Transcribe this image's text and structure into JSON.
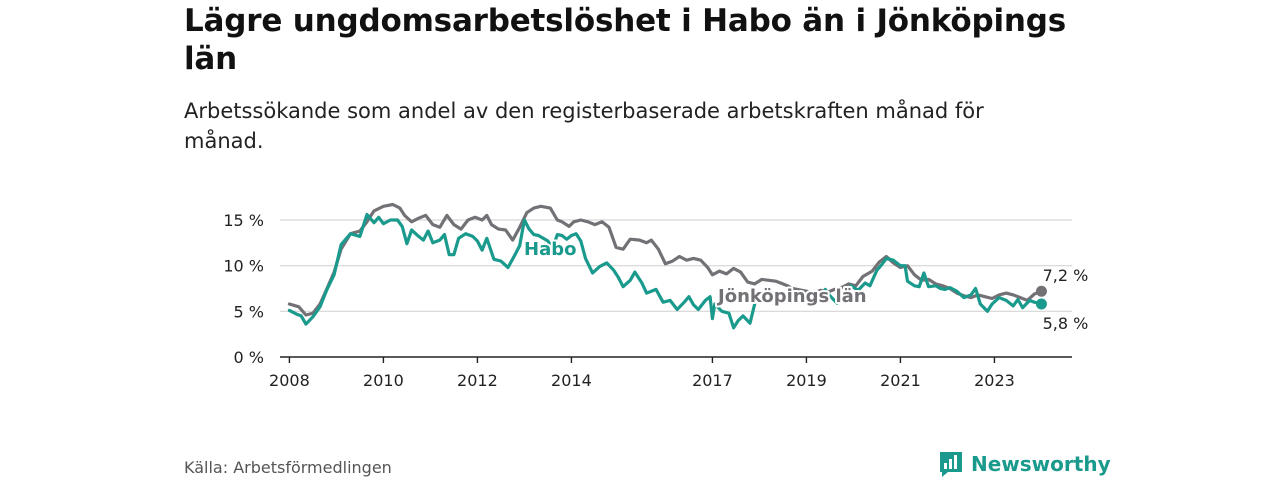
{
  "title": "Lägre ungdomsarbetslöshet i Habo än i Jönköpings län",
  "subtitle": "Arbetssökande som andel av den registerbaserade arbetskraften månad för månad.",
  "source": "Källa: Arbetsförmedlingen",
  "brand": "Newsworthy",
  "colors": {
    "habo": "#1a9a8c",
    "lan": "#747176",
    "axis": "#222222",
    "grid": "#d6d6d6"
  },
  "chart_data": {
    "type": "line",
    "title": "Lägre ungdomsarbetslöshet i Habo än i Jönköpings län",
    "xlabel": "",
    "ylabel": "",
    "xlim": [
      2007.8,
      2024.65
    ],
    "ylim": [
      0,
      15
    ],
    "y_ticks": [
      0,
      5,
      10,
      15
    ],
    "y_tick_labels": [
      "0 %",
      "5 %",
      "10 %",
      "15 %"
    ],
    "x_ticks": [
      2008,
      2010,
      2012,
      2014,
      2017,
      2019,
      2021,
      2023
    ],
    "x_tick_labels": [
      "2008",
      "2010",
      "2012",
      "2014",
      "2017",
      "2019",
      "2021",
      "2023"
    ],
    "grid": true,
    "series": [
      {
        "name": "Jönköpings län",
        "color": "#747176",
        "end_label": "7,2 %",
        "points": [
          [
            2008.0,
            5.8
          ],
          [
            2008.2,
            5.5
          ],
          [
            2008.35,
            4.6
          ],
          [
            2008.5,
            4.8
          ],
          [
            2008.65,
            5.8
          ],
          [
            2008.8,
            7.5
          ],
          [
            2008.95,
            9.3
          ],
          [
            2009.1,
            11.8
          ],
          [
            2009.3,
            13.5
          ],
          [
            2009.5,
            13.8
          ],
          [
            2009.65,
            14.8
          ],
          [
            2009.8,
            16.0
          ],
          [
            2010.0,
            16.5
          ],
          [
            2010.2,
            16.7
          ],
          [
            2010.35,
            16.3
          ],
          [
            2010.45,
            15.5
          ],
          [
            2010.6,
            14.8
          ],
          [
            2010.75,
            15.2
          ],
          [
            2010.9,
            15.5
          ],
          [
            2011.05,
            14.5
          ],
          [
            2011.2,
            14.2
          ],
          [
            2011.35,
            15.5
          ],
          [
            2011.5,
            14.5
          ],
          [
            2011.65,
            14.0
          ],
          [
            2011.8,
            15.0
          ],
          [
            2011.95,
            15.3
          ],
          [
            2012.1,
            15.0
          ],
          [
            2012.2,
            15.5
          ],
          [
            2012.3,
            14.5
          ],
          [
            2012.45,
            14.0
          ],
          [
            2012.6,
            13.9
          ],
          [
            2012.75,
            12.8
          ],
          [
            2012.9,
            14.2
          ],
          [
            2013.05,
            15.8
          ],
          [
            2013.2,
            16.3
          ],
          [
            2013.35,
            16.5
          ],
          [
            2013.55,
            16.3
          ],
          [
            2013.7,
            15.0
          ],
          [
            2013.8,
            14.8
          ],
          [
            2013.95,
            14.3
          ],
          [
            2014.05,
            14.8
          ],
          [
            2014.2,
            15.0
          ],
          [
            2014.35,
            14.8
          ],
          [
            2014.5,
            14.5
          ],
          [
            2014.65,
            14.8
          ],
          [
            2014.8,
            14.2
          ],
          [
            2014.95,
            12.0
          ],
          [
            2015.1,
            11.8
          ],
          [
            2015.25,
            12.9
          ],
          [
            2015.45,
            12.8
          ],
          [
            2015.6,
            12.5
          ],
          [
            2015.7,
            12.8
          ],
          [
            2015.85,
            11.8
          ],
          [
            2016.0,
            10.2
          ],
          [
            2016.15,
            10.5
          ],
          [
            2016.3,
            11.0
          ],
          [
            2016.45,
            10.6
          ],
          [
            2016.6,
            10.8
          ],
          [
            2016.75,
            10.6
          ],
          [
            2016.9,
            9.8
          ],
          [
            2017.0,
            9.0
          ],
          [
            2017.15,
            9.4
          ],
          [
            2017.3,
            9.1
          ],
          [
            2017.45,
            9.7
          ],
          [
            2017.6,
            9.3
          ],
          [
            2017.75,
            8.2
          ],
          [
            2017.9,
            8.0
          ],
          [
            2018.05,
            8.5
          ],
          [
            2018.2,
            8.4
          ],
          [
            2018.35,
            8.3
          ],
          [
            2018.5,
            8.0
          ],
          [
            2018.6,
            7.8
          ],
          [
            2018.7,
            7.5
          ],
          [
            2019.0,
            7.2
          ],
          [
            2019.15,
            7.0
          ],
          [
            2019.3,
            7.3
          ],
          [
            2019.45,
            7.1
          ],
          [
            2019.6,
            7.4
          ],
          [
            2019.75,
            7.6
          ],
          [
            2019.9,
            8.0
          ],
          [
            2020.05,
            7.8
          ],
          [
            2020.2,
            8.8
          ],
          [
            2020.4,
            9.4
          ],
          [
            2020.55,
            10.4
          ],
          [
            2020.7,
            11.0
          ],
          [
            2020.85,
            10.3
          ],
          [
            2021.0,
            9.8
          ],
          [
            2021.15,
            10.0
          ],
          [
            2021.3,
            9.0
          ],
          [
            2021.45,
            8.4
          ],
          [
            2021.6,
            8.5
          ],
          [
            2021.75,
            8.0
          ],
          [
            2021.9,
            7.8
          ],
          [
            2022.05,
            7.5
          ],
          [
            2022.2,
            7.0
          ],
          [
            2022.35,
            6.7
          ],
          [
            2022.5,
            6.5
          ],
          [
            2022.65,
            6.8
          ],
          [
            2022.8,
            6.6
          ],
          [
            2022.95,
            6.4
          ],
          [
            2023.1,
            6.8
          ],
          [
            2023.25,
            7.0
          ],
          [
            2023.4,
            6.8
          ],
          [
            2023.55,
            6.5
          ],
          [
            2023.7,
            6.2
          ],
          [
            2023.85,
            6.9
          ],
          [
            2024.0,
            7.2
          ]
        ]
      },
      {
        "name": "Habo",
        "color": "#1a9a8c",
        "end_label": "5,8 %",
        "points": [
          [
            2008.0,
            5.1
          ],
          [
            2008.15,
            4.7
          ],
          [
            2008.25,
            4.5
          ],
          [
            2008.35,
            3.6
          ],
          [
            2008.5,
            4.4
          ],
          [
            2008.65,
            5.5
          ],
          [
            2008.8,
            7.4
          ],
          [
            2008.95,
            9.0
          ],
          [
            2009.1,
            12.3
          ],
          [
            2009.3,
            13.5
          ],
          [
            2009.5,
            13.2
          ],
          [
            2009.65,
            15.6
          ],
          [
            2009.8,
            14.7
          ],
          [
            2009.9,
            15.3
          ],
          [
            2010.0,
            14.6
          ],
          [
            2010.15,
            15.0
          ],
          [
            2010.3,
            15.0
          ],
          [
            2010.4,
            14.3
          ],
          [
            2010.5,
            12.4
          ],
          [
            2010.6,
            13.9
          ],
          [
            2010.75,
            13.2
          ],
          [
            2010.85,
            12.8
          ],
          [
            2010.95,
            13.8
          ],
          [
            2011.05,
            12.5
          ],
          [
            2011.2,
            12.8
          ],
          [
            2011.3,
            13.4
          ],
          [
            2011.4,
            11.2
          ],
          [
            2011.5,
            11.2
          ],
          [
            2011.6,
            13.0
          ],
          [
            2011.75,
            13.5
          ],
          [
            2011.9,
            13.2
          ],
          [
            2012.0,
            12.7
          ],
          [
            2012.1,
            11.7
          ],
          [
            2012.2,
            13.0
          ],
          [
            2012.35,
            10.7
          ],
          [
            2012.5,
            10.5
          ],
          [
            2012.65,
            9.8
          ],
          [
            2012.8,
            11.2
          ],
          [
            2012.9,
            12.2
          ],
          [
            2013.0,
            15.0
          ],
          [
            2013.1,
            14.0
          ],
          [
            2013.2,
            13.4
          ],
          [
            2013.3,
            13.3
          ],
          [
            2013.4,
            13.0
          ],
          [
            2013.5,
            12.7
          ],
          [
            2013.6,
            11.9
          ],
          [
            2013.7,
            13.4
          ],
          [
            2013.8,
            13.3
          ],
          [
            2013.9,
            12.9
          ],
          [
            2014.0,
            13.3
          ],
          [
            2014.1,
            13.5
          ],
          [
            2014.2,
            12.7
          ],
          [
            2014.3,
            10.8
          ],
          [
            2014.45,
            9.2
          ],
          [
            2014.6,
            9.9
          ],
          [
            2014.75,
            10.3
          ],
          [
            2014.9,
            9.5
          ],
          [
            2015.0,
            8.7
          ],
          [
            2015.1,
            7.7
          ],
          [
            2015.25,
            8.4
          ],
          [
            2015.35,
            9.3
          ],
          [
            2015.5,
            8.1
          ],
          [
            2015.6,
            7.0
          ],
          [
            2015.8,
            7.4
          ],
          [
            2015.95,
            6.0
          ],
          [
            2016.1,
            6.2
          ],
          [
            2016.25,
            5.2
          ],
          [
            2016.4,
            6.0
          ],
          [
            2016.5,
            6.6
          ],
          [
            2016.6,
            5.7
          ],
          [
            2016.7,
            5.2
          ],
          [
            2016.85,
            6.2
          ],
          [
            2016.95,
            6.6
          ],
          [
            2017.0,
            4.2
          ],
          [
            2017.05,
            5.8
          ],
          [
            2017.2,
            5.0
          ],
          [
            2017.35,
            4.8
          ],
          [
            2017.45,
            3.2
          ],
          [
            2017.55,
            4.0
          ],
          [
            2017.65,
            4.5
          ],
          [
            2017.8,
            3.7
          ],
          [
            2017.9,
            5.8
          ]
        ],
        "points_late": [
          [
            2019.4,
            7.4
          ],
          [
            2019.5,
            6.7
          ],
          [
            2019.65,
            5.9
          ],
          [
            2019.8,
            6.8
          ],
          [
            2019.95,
            7.8
          ],
          [
            2020.1,
            7.3
          ],
          [
            2020.25,
            8.1
          ],
          [
            2020.35,
            7.8
          ],
          [
            2020.5,
            9.5
          ],
          [
            2020.6,
            10.1
          ],
          [
            2020.7,
            10.8
          ],
          [
            2020.85,
            10.6
          ],
          [
            2021.0,
            10.0
          ],
          [
            2021.1,
            10.0
          ],
          [
            2021.15,
            8.3
          ],
          [
            2021.3,
            7.8
          ],
          [
            2021.4,
            7.7
          ],
          [
            2021.5,
            9.2
          ],
          [
            2021.6,
            7.7
          ],
          [
            2021.75,
            7.8
          ],
          [
            2021.85,
            7.5
          ],
          [
            2021.95,
            7.4
          ],
          [
            2022.05,
            7.6
          ],
          [
            2022.2,
            7.2
          ],
          [
            2022.35,
            6.5
          ],
          [
            2022.5,
            6.8
          ],
          [
            2022.6,
            7.5
          ],
          [
            2022.7,
            5.8
          ],
          [
            2022.85,
            5.0
          ],
          [
            2022.95,
            5.8
          ],
          [
            2023.1,
            6.5
          ],
          [
            2023.25,
            6.2
          ],
          [
            2023.4,
            5.6
          ],
          [
            2023.5,
            6.3
          ],
          [
            2023.6,
            5.4
          ],
          [
            2023.75,
            6.2
          ],
          [
            2023.85,
            6.0
          ],
          [
            2024.0,
            5.8
          ]
        ]
      }
    ],
    "annotations": [
      {
        "text": "Habo",
        "series": "Habo",
        "x": 2013.55,
        "y": 11.8
      },
      {
        "text": "Jönköpings län",
        "series": "Jönköpings län",
        "x": 2018.7,
        "y": 6.7
      }
    ]
  }
}
